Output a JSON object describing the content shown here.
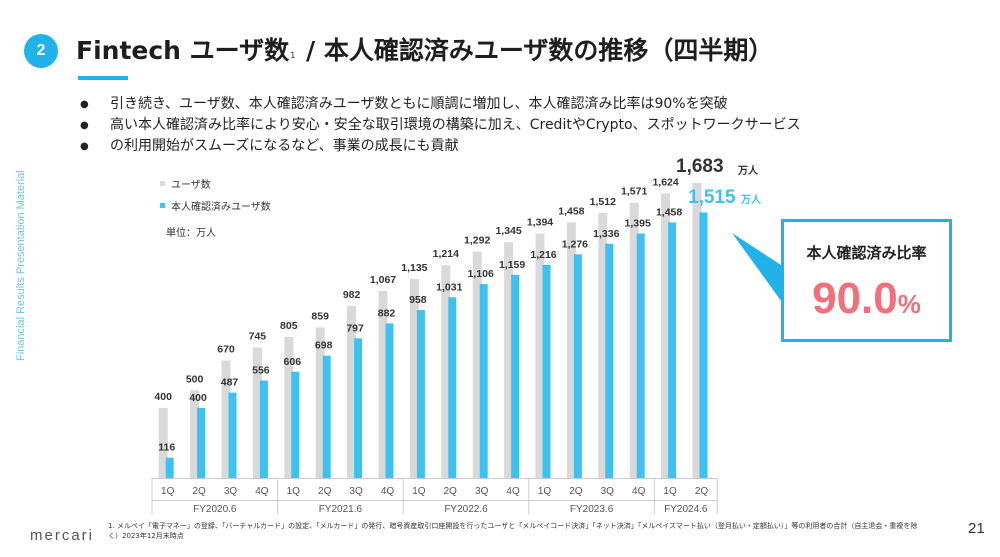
{
  "side_label": "Financial Results Presentation Material",
  "section_number": "2",
  "title": {
    "main": "Fintech ユーザ数",
    "note_mark": "1",
    "rest": " / 本人確認済みユーザ数の推移（四半期）"
  },
  "bullets": [
    "引き続き、ユーザ数、本人確認済みユーザ数ともに順調に増加し、本人確認済み比率は90%を突破",
    "高い本人確認済み比率により安心・安全な取引環境の構築に加え、CreditやCrypto、スポットワークサービス",
    "の利用開始がスムーズになるなど、事業の成長にも貢献"
  ],
  "callout": {
    "title": "本人確認済み比率",
    "value": "90.0",
    "unit": "%"
  },
  "chart_data": {
    "type": "bar",
    "legend": [
      "ユーザ数",
      "本人確認済みユーザ数"
    ],
    "unit_label": "単位：万人",
    "categories": [
      "1Q",
      "2Q",
      "3Q",
      "4Q",
      "1Q",
      "2Q",
      "3Q",
      "4Q",
      "1Q",
      "2Q",
      "3Q",
      "4Q",
      "1Q",
      "2Q",
      "3Q",
      "4Q",
      "1Q",
      "2Q"
    ],
    "fiscal_years": [
      {
        "label": "FY2020.6",
        "start": 0,
        "count": 4
      },
      {
        "label": "FY2021.6",
        "start": 4,
        "count": 4
      },
      {
        "label": "FY2022.6",
        "start": 8,
        "count": 4
      },
      {
        "label": "FY2023.6",
        "start": 12,
        "count": 4
      },
      {
        "label": "FY2024.6",
        "start": 16,
        "count": 2
      }
    ],
    "series": [
      {
        "name": "ユーザ数",
        "color": "#d9d9d9",
        "values": [
          400,
          500,
          670,
          745,
          805,
          859,
          982,
          1067,
          1135,
          1214,
          1292,
          1345,
          1394,
          1458,
          1512,
          1571,
          1624,
          1683
        ]
      },
      {
        "name": "本人確認済みユーザ数",
        "color": "#3ec1f0",
        "values": [
          116,
          400,
          487,
          556,
          606,
          698,
          797,
          882,
          958,
          1031,
          1106,
          1159,
          1216,
          1276,
          1336,
          1395,
          1458,
          1515
        ]
      }
    ],
    "value_labels": {
      "users": [
        "400",
        "500",
        "670",
        "745",
        "805",
        "859",
        "982",
        "1,067",
        "1,135",
        "1,214",
        "1,292",
        "1,345",
        "1,394",
        "1,458",
        "1,512",
        "1,571",
        "1,624",
        "1,683"
      ],
      "verified": [
        "116",
        "400",
        "487",
        "556",
        "606",
        "698",
        "797",
        "882",
        "958",
        "1,031",
        "1,106",
        "1,159",
        "1,216",
        "1,276",
        "1,336",
        "1,395",
        "1,458",
        "1,515"
      ]
    },
    "highlight_unit": "万人",
    "ylim": [
      0,
      1700
    ]
  },
  "footer": {
    "logo": "mercari",
    "footnote": "1.  メルペイ「電子マネー」の登録、「バーチャルカード」の設定、「メルカード」の発行、暗号資産取引口座開設を行ったユーザと「メルペイコード決済」「ネット決済」「メルペイスマート払い（登月払い・定額払い）」等の利用者の合計（自主退会・重複を除く）2023年12月末時点",
    "page_number": "21"
  }
}
